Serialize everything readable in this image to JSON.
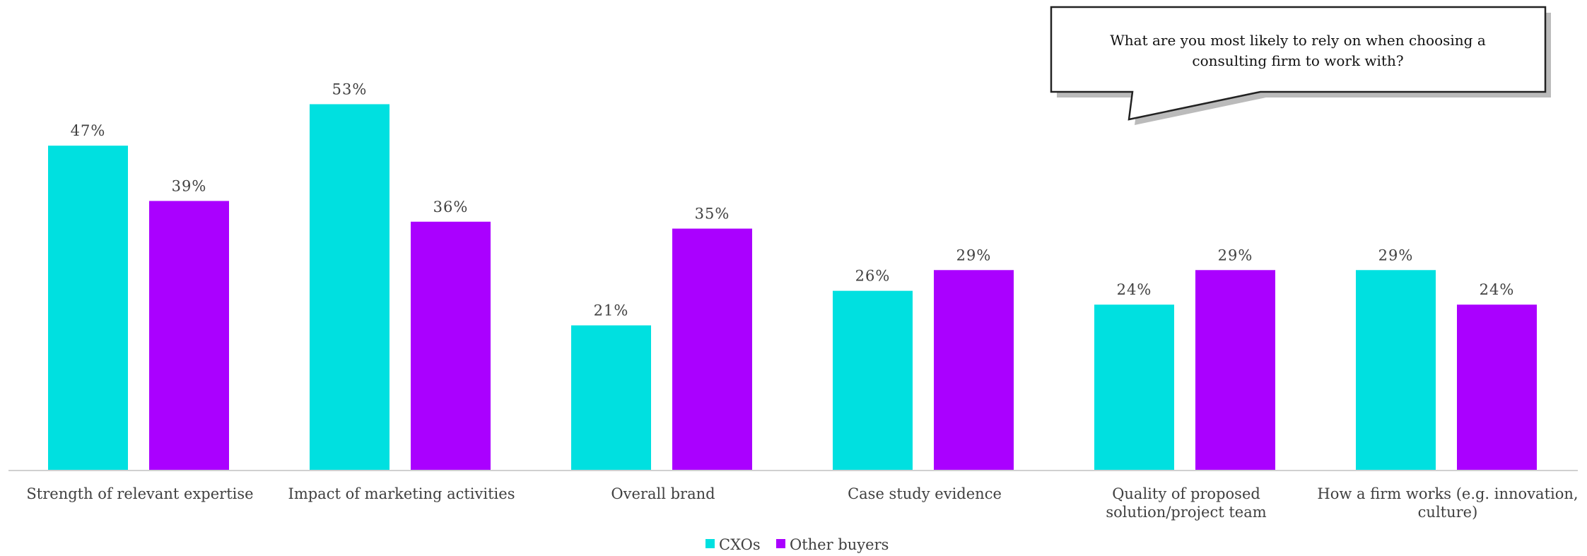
{
  "chart_data": {
    "type": "bar",
    "categories": [
      [
        "Strength of relevant expertise"
      ],
      [
        "Impact of marketing activities"
      ],
      [
        "Overall brand"
      ],
      [
        "Case study evidence"
      ],
      [
        "Quality of proposed",
        "solution/project team"
      ],
      [
        "How a firm works (e.g. innovation,",
        "culture)"
      ]
    ],
    "series": [
      {
        "name": "CXOs",
        "color": "#00E0E0",
        "values": [
          47,
          53,
          21,
          26,
          24,
          29
        ]
      },
      {
        "name": "Other buyers",
        "color": "#AA00FF",
        "values": [
          39,
          36,
          35,
          29,
          29,
          24
        ]
      }
    ],
    "value_suffix": "%",
    "ylim": [
      0,
      60
    ],
    "grid": false,
    "legend_position": "bottom-center",
    "callout": {
      "lines": [
        "What are you most likely to rely on when choosing a",
        "consulting firm to work with?"
      ]
    }
  }
}
